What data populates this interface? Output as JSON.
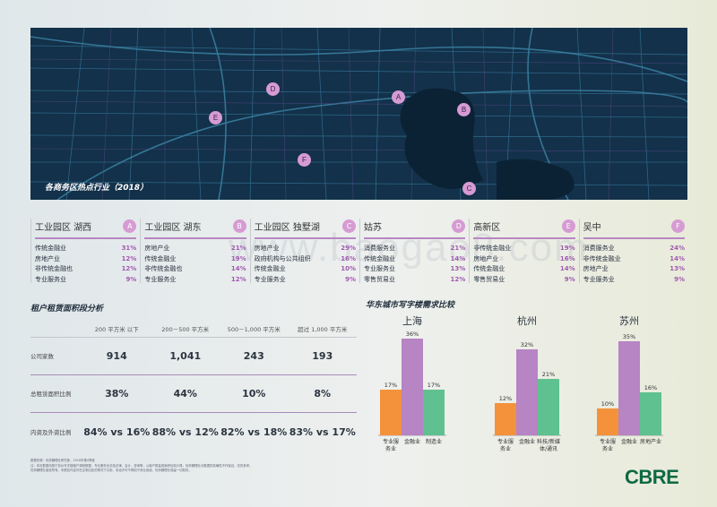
{
  "map": {
    "caption": "各商务区热点行业（2018）",
    "pins": [
      {
        "letter": "A"
      },
      {
        "letter": "B"
      },
      {
        "letter": "C"
      },
      {
        "letter": "D"
      },
      {
        "letter": "E"
      },
      {
        "letter": "F"
      }
    ]
  },
  "zones": [
    {
      "name": "工业园区 湖西",
      "letter": "A",
      "rows": [
        {
          "label": "传统金融业",
          "pct": "31%"
        },
        {
          "label": "房地产业",
          "pct": "12%"
        },
        {
          "label": "非传统金融也",
          "pct": "12%"
        },
        {
          "label": "专业服务业",
          "pct": "9%"
        }
      ]
    },
    {
      "name": "工业园区 湖东",
      "letter": "B",
      "rows": [
        {
          "label": "房地产业",
          "pct": "21%"
        },
        {
          "label": "传统金融业",
          "pct": "19%"
        },
        {
          "label": "非传统金融也",
          "pct": "14%"
        },
        {
          "label": "专业服务业",
          "pct": "12%"
        }
      ]
    },
    {
      "name": "工业园区 独墅湖",
      "letter": "C",
      "rows": [
        {
          "label": "房地产业",
          "pct": "29%"
        },
        {
          "label": "政府机构与公共组织",
          "pct": "16%"
        },
        {
          "label": "传统金融业",
          "pct": "10%"
        },
        {
          "label": "专业服务业",
          "pct": "9%"
        }
      ]
    },
    {
      "name": "姑苏",
      "letter": "D",
      "rows": [
        {
          "label": "消费服务业",
          "pct": "21%"
        },
        {
          "label": "传统金融业",
          "pct": "14%"
        },
        {
          "label": "专业服务业",
          "pct": "13%"
        },
        {
          "label": "零售贸易业",
          "pct": "12%"
        }
      ]
    },
    {
      "name": "高新区",
      "letter": "E",
      "rows": [
        {
          "label": "非传统金融业",
          "pct": "19%"
        },
        {
          "label": "房地产业",
          "pct": "16%"
        },
        {
          "label": "传统金融业",
          "pct": "14%"
        },
        {
          "label": "零售贸易业",
          "pct": "9%"
        }
      ]
    },
    {
      "name": "吴中",
      "letter": "F",
      "rows": [
        {
          "label": "消费服务业",
          "pct": "24%"
        },
        {
          "label": "非传统金融业",
          "pct": "14%"
        },
        {
          "label": "房地产业",
          "pct": "13%"
        },
        {
          "label": "专业服务业",
          "pct": "9%"
        }
      ]
    }
  ],
  "watermark": "www.baogao8.com",
  "rent": {
    "title": "租户租赁面积段分析",
    "columns": [
      "200 平方米 以下",
      "200－500 平方米",
      "500－1,000 平方米",
      "超过 1,000 平方米"
    ],
    "rows": [
      {
        "label": "公司家数",
        "values": [
          "914",
          "1,041",
          "243",
          "193"
        ]
      },
      {
        "label": "总租赁面积比例",
        "values": [
          "38%",
          "44%",
          "10%",
          "8%"
        ]
      },
      {
        "label": "内资及外资比例",
        "values": [
          "84% vs 16%",
          "88% vs 12%",
          "82% vs 18%",
          "83% vs 17%"
        ]
      }
    ]
  },
  "demand_title": "华东城市写字楼需求比较",
  "chart_data": {
    "type": "bar",
    "colors": {
      "专业服务业": "#f4923c",
      "金融业": "#b784c4",
      "other": "#5ec18f"
    },
    "groups": [
      {
        "city": "上海",
        "bars": [
          {
            "label": "专业服务业",
            "value": 17,
            "text": "17%"
          },
          {
            "label": "金融业",
            "value": 36,
            "text": "36%"
          },
          {
            "label": "制造业",
            "value": 17,
            "text": "17%"
          }
        ]
      },
      {
        "city": "杭州",
        "bars": [
          {
            "label": "专业服务业",
            "value": 12,
            "text": "12%"
          },
          {
            "label": "金融业",
            "value": 32,
            "text": "32%"
          },
          {
            "label": "科技/新媒体/通讯",
            "value": 21,
            "text": "21%"
          }
        ]
      },
      {
        "city": "苏州",
        "bars": [
          {
            "label": "专业服务业",
            "value": 10,
            "text": "10%"
          },
          {
            "label": "金融业",
            "value": 35,
            "text": "35%"
          },
          {
            "label": "房地产业",
            "value": 16,
            "text": "16%"
          }
        ]
      }
    ],
    "ylim": [
      0,
      36
    ]
  },
  "notes": [
    "数据来源：世邦魏理仕研究部，2018年第4季度",
    "注：本页数据均基于苏州写字楼租户调研数据，专业服务业包括法律、会计、咨询等，以租户数量或面积加权计算。世邦魏理仕对数据的准确性不作保证，仅供参考。",
    "世邦魏理仕版权所有。本报告内容可在注明出处的情况下引用，未经许可不得用于商业用途，世邦魏理仕保留一切权利。"
  ],
  "logo": "CBRE"
}
